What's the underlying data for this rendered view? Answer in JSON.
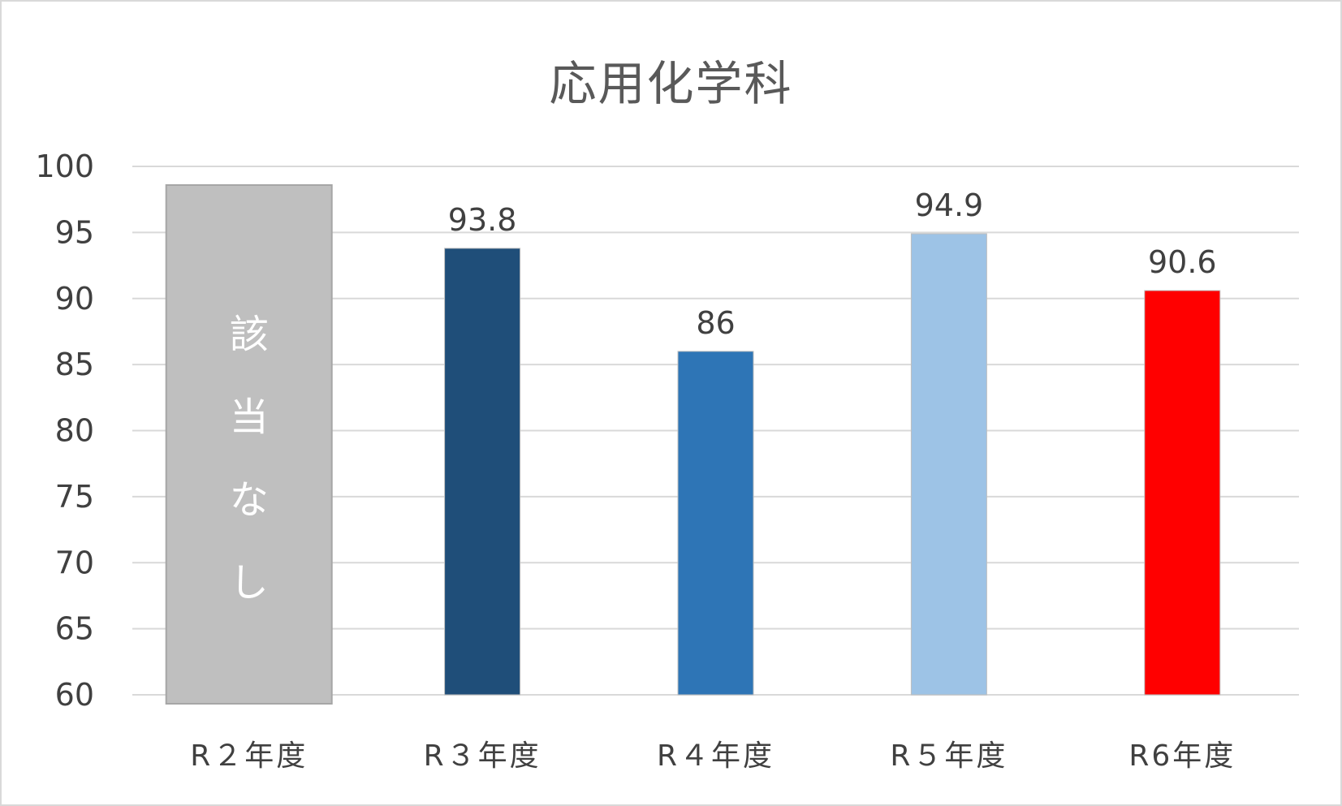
{
  "chart_data": {
    "type": "bar",
    "title": "応用化学科",
    "categories": [
      "R２年度",
      "R３年度",
      "R４年度",
      "R５年度",
      "R6年度"
    ],
    "values": [
      null,
      93.8,
      86,
      94.9,
      90.6
    ],
    "data_labels": [
      "",
      "93.8",
      "86",
      "94.9",
      "90.6"
    ],
    "not_applicable": {
      "category_index": 0,
      "text": [
        "該",
        "当",
        "な",
        "し"
      ]
    },
    "colors": [
      "#bfbfbf",
      "#1f4e79",
      "#2e75b6",
      "#9dc3e6",
      "#ff0000"
    ],
    "ylim": [
      60,
      100
    ],
    "yticks": [
      100,
      95,
      90,
      85,
      80,
      75,
      70,
      65,
      60
    ],
    "xlabel": "",
    "ylabel": "",
    "grid": true,
    "legend": "none"
  }
}
